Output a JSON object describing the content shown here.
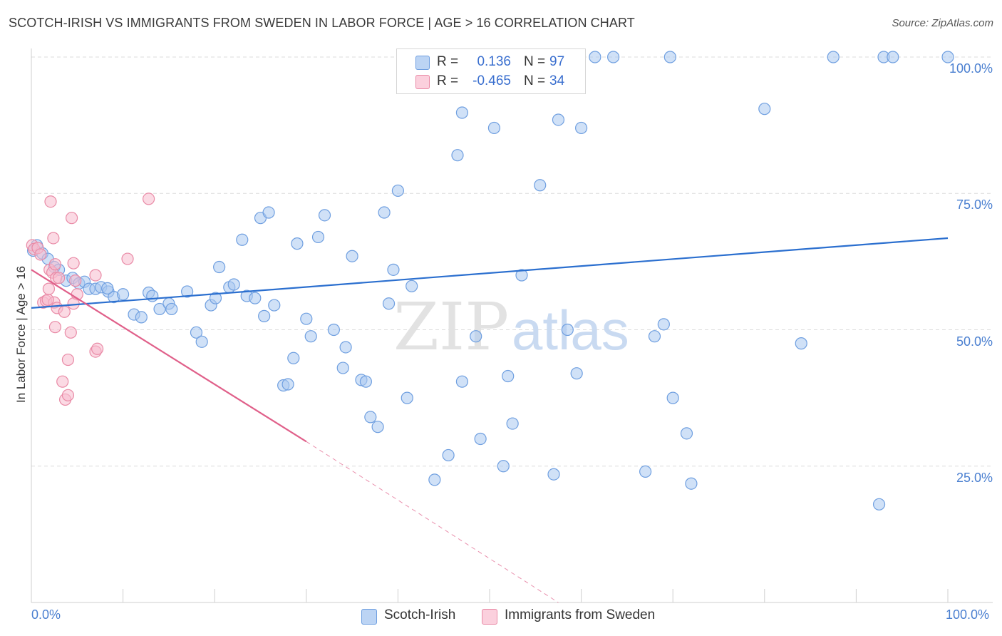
{
  "header": {
    "title": "SCOTCH-IRISH VS IMMIGRANTS FROM SWEDEN IN LABOR FORCE | AGE > 16 CORRELATION CHART",
    "source": "Source: ZipAtlas.com"
  },
  "watermark": {
    "part1": "ZIP",
    "part2": "atlas"
  },
  "legend": {
    "r_label": "R =",
    "n_label": "N =",
    "series": [
      {
        "r": "0.136",
        "n": "97"
      },
      {
        "r": "-0.465",
        "n": "34"
      }
    ]
  },
  "colors": {
    "blue_fill": "#a9c8f0",
    "blue_stroke": "#6f9fe0",
    "blue_line": "#2b6fcf",
    "pink_fill": "#f7bccd",
    "pink_stroke": "#e98aa6",
    "pink_line": "#e0608a",
    "grid": "#dcdcdc",
    "tick_label": "#4a7fd0"
  },
  "chart_data": {
    "type": "scatter",
    "title": "SCOTCH-IRISH VS IMMIGRANTS FROM SWEDEN IN LABOR FORCE | AGE > 16 CORRELATION CHART",
    "xlabel": "",
    "ylabel": "In Labor Force | Age > 16",
    "xlim": [
      0,
      100
    ],
    "ylim": [
      0,
      100
    ],
    "x_tick_labels": [
      "0.0%",
      "100.0%"
    ],
    "y_ticks": [
      25,
      50,
      75,
      100
    ],
    "y_tick_labels": [
      "25.0%",
      "50.0%",
      "75.0%",
      "100.0%"
    ],
    "grid": true,
    "legend_position": "bottom-center",
    "series": [
      {
        "name": "Scotch-Irish",
        "r": 0.136,
        "n": 97,
        "trend": {
          "x": [
            0,
            100
          ],
          "y": [
            54.0,
            66.8
          ]
        },
        "points": [
          [
            0.2,
            64.5
          ],
          [
            0.6,
            65.5
          ],
          [
            1.2,
            64.0
          ],
          [
            1.8,
            63.0
          ],
          [
            2.5,
            61.5
          ],
          [
            3.0,
            61.0
          ],
          [
            3.8,
            59.0
          ],
          [
            4.5,
            59.5
          ],
          [
            5.2,
            58.5
          ],
          [
            5.8,
            58.8
          ],
          [
            6.3,
            57.5
          ],
          [
            7.0,
            57.5
          ],
          [
            7.6,
            57.8
          ],
          [
            8.4,
            57.0
          ],
          [
            9.0,
            56.0
          ],
          [
            8.3,
            57.6
          ],
          [
            10.0,
            56.5
          ],
          [
            11.2,
            52.8
          ],
          [
            12.0,
            52.3
          ],
          [
            12.8,
            56.8
          ],
          [
            13.2,
            56.2
          ],
          [
            14.0,
            53.8
          ],
          [
            15.0,
            54.8
          ],
          [
            15.3,
            53.8
          ],
          [
            17.0,
            57.0
          ],
          [
            18.0,
            49.5
          ],
          [
            18.6,
            47.8
          ],
          [
            19.6,
            54.5
          ],
          [
            20.1,
            55.8
          ],
          [
            20.5,
            61.5
          ],
          [
            21.6,
            57.8
          ],
          [
            22.1,
            58.3
          ],
          [
            23.0,
            66.5
          ],
          [
            23.5,
            56.2
          ],
          [
            24.4,
            55.8
          ],
          [
            25.0,
            70.5
          ],
          [
            25.4,
            52.5
          ],
          [
            25.9,
            71.5
          ],
          [
            26.5,
            54.5
          ],
          [
            27.5,
            39.8
          ],
          [
            28.0,
            40.0
          ],
          [
            28.6,
            44.8
          ],
          [
            29.0,
            65.8
          ],
          [
            30.0,
            52.0
          ],
          [
            30.5,
            48.8
          ],
          [
            31.3,
            67.0
          ],
          [
            32.0,
            71.0
          ],
          [
            33.0,
            50.0
          ],
          [
            34.0,
            43.0
          ],
          [
            34.3,
            46.8
          ],
          [
            35.0,
            63.5
          ],
          [
            36.0,
            40.8
          ],
          [
            36.5,
            40.5
          ],
          [
            37.0,
            34.0
          ],
          [
            37.8,
            32.2
          ],
          [
            38.5,
            71.5
          ],
          [
            39.0,
            54.8
          ],
          [
            39.5,
            61.0
          ],
          [
            40.0,
            75.5
          ],
          [
            41.0,
            37.5
          ],
          [
            41.5,
            58.0
          ],
          [
            44.0,
            22.5
          ],
          [
            45.5,
            27.0
          ],
          [
            46.5,
            82.0
          ],
          [
            47.0,
            89.8
          ],
          [
            47.0,
            40.5
          ],
          [
            48.5,
            48.8
          ],
          [
            49.0,
            30.0
          ],
          [
            50.5,
            87.0
          ],
          [
            50.8,
            100.0
          ],
          [
            51.5,
            25.0
          ],
          [
            52.0,
            41.5
          ],
          [
            52.5,
            32.8
          ],
          [
            53.5,
            60.0
          ],
          [
            54.0,
            100.0
          ],
          [
            55.5,
            76.5
          ],
          [
            57.0,
            23.5
          ],
          [
            57.5,
            88.5
          ],
          [
            58.5,
            50.0
          ],
          [
            59.5,
            42.0
          ],
          [
            60.0,
            87.0
          ],
          [
            61.5,
            100.0
          ],
          [
            63.5,
            100.0
          ],
          [
            67.0,
            24.0
          ],
          [
            68.0,
            48.8
          ],
          [
            69.0,
            51.0
          ],
          [
            70.0,
            37.5
          ],
          [
            71.5,
            31.0
          ],
          [
            72.0,
            21.8
          ],
          [
            80.0,
            90.5
          ],
          [
            69.7,
            100.0
          ],
          [
            87.5,
            100.0
          ],
          [
            93.0,
            100.0
          ],
          [
            94.0,
            100.0
          ],
          [
            84.0,
            47.5
          ],
          [
            92.5,
            18.0
          ],
          [
            100.0,
            100.0
          ]
        ]
      },
      {
        "name": "Immigrants from Sweden",
        "r": -0.465,
        "n": 34,
        "trend": {
          "x": [
            0,
            30
          ],
          "y": [
            61.0,
            29.5
          ]
        },
        "trend_dashed": {
          "x": [
            30,
            57.5
          ],
          "y": [
            29.5,
            0
          ]
        },
        "points": [
          [
            0.1,
            65.5
          ],
          [
            0.3,
            64.8
          ],
          [
            0.7,
            65.0
          ],
          [
            1.0,
            63.8
          ],
          [
            1.3,
            55.0
          ],
          [
            1.6,
            55.3
          ],
          [
            2.0,
            61.0
          ],
          [
            2.3,
            60.5
          ],
          [
            2.5,
            55.0
          ],
          [
            1.8,
            55.5
          ],
          [
            2.7,
            59.5
          ],
          [
            1.9,
            57.5
          ],
          [
            2.1,
            73.5
          ],
          [
            2.4,
            66.8
          ],
          [
            2.6,
            50.5
          ],
          [
            2.8,
            54.0
          ],
          [
            3.0,
            59.5
          ],
          [
            2.6,
            62.0
          ],
          [
            3.4,
            40.5
          ],
          [
            3.7,
            37.2
          ],
          [
            4.0,
            38.0
          ],
          [
            3.6,
            53.3
          ],
          [
            4.3,
            49.5
          ],
          [
            4.0,
            44.5
          ],
          [
            4.6,
            62.2
          ],
          [
            4.4,
            70.5
          ],
          [
            4.8,
            59.0
          ],
          [
            5.0,
            56.5
          ],
          [
            4.6,
            54.8
          ],
          [
            7.0,
            60.0
          ],
          [
            7.0,
            46.0
          ],
          [
            7.2,
            46.5
          ],
          [
            10.5,
            63.0
          ],
          [
            12.8,
            74.0
          ]
        ]
      }
    ]
  },
  "bottom_legend": {
    "items": [
      {
        "label": "Scotch-Irish"
      },
      {
        "label": "Immigrants from Sweden"
      }
    ]
  }
}
